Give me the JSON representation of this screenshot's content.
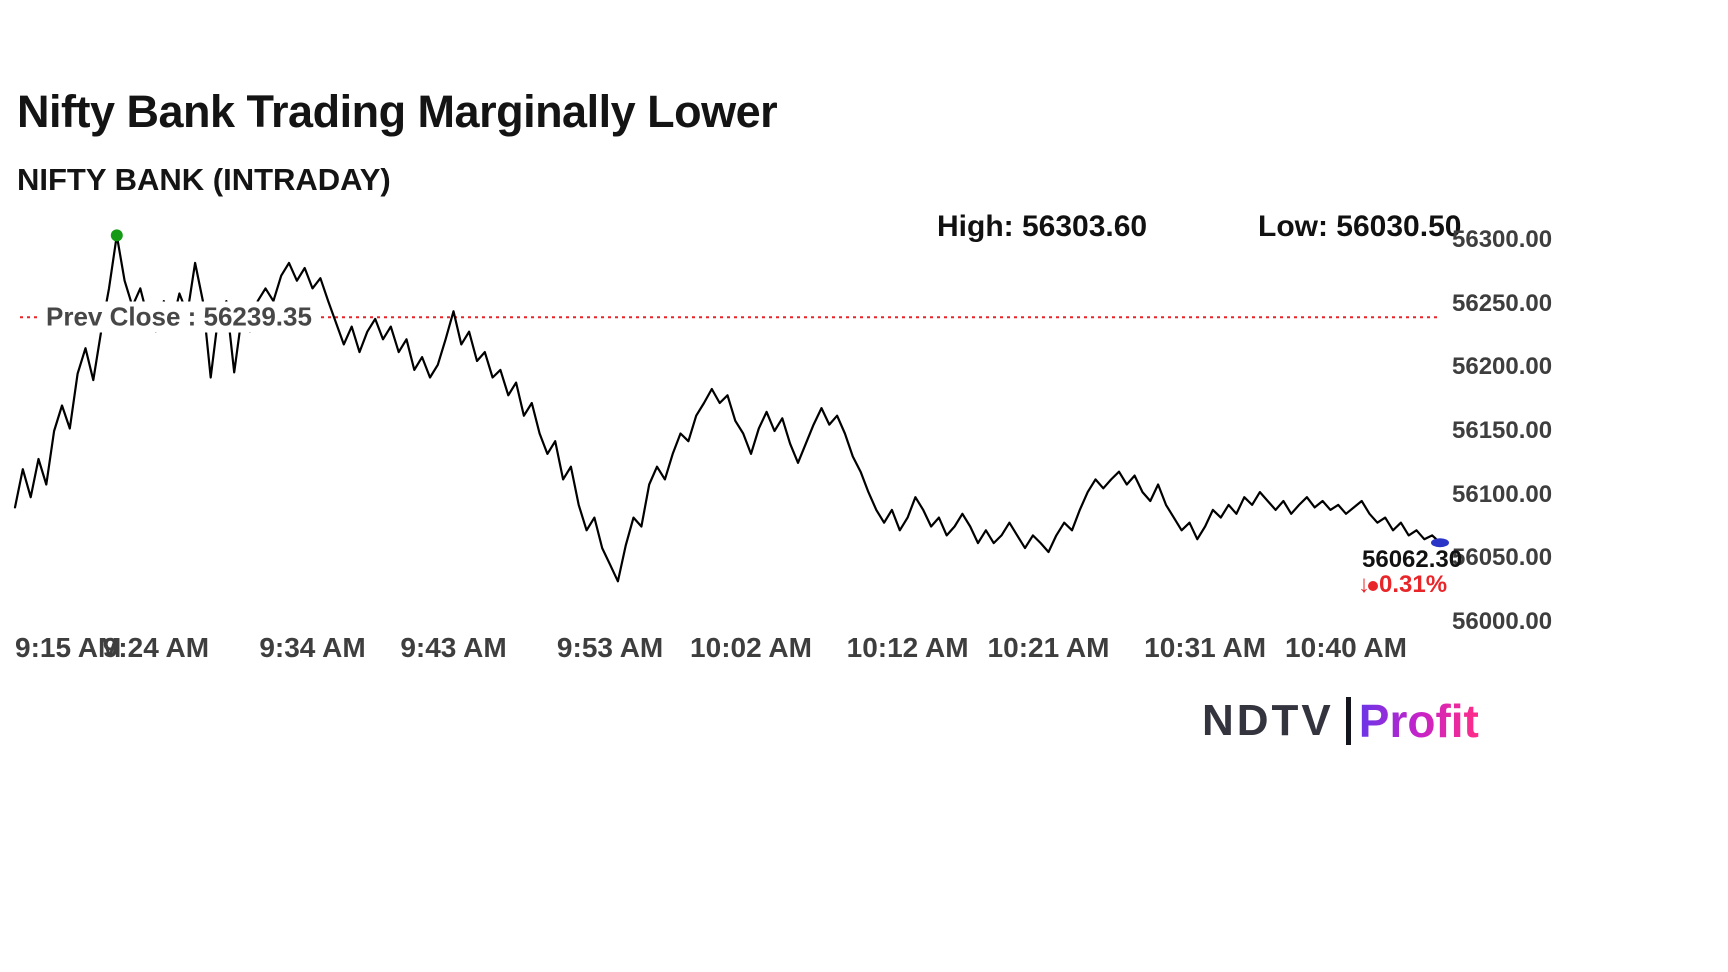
{
  "header": {
    "title": "Nifty Bank Trading Marginally Lower",
    "subtitle": "NIFTY BANK (INTRADAY)",
    "high_label": "High: 56303.60",
    "low_label": "Low: 56030.50"
  },
  "chart_data": {
    "type": "line",
    "title": "NIFTY BANK (INTRADAY)",
    "series_name": "Nifty Bank",
    "high": 56303.6,
    "low": 56030.5,
    "prev_close": 56239.35,
    "prev_close_label": "Prev Close : 56239.35",
    "last_price": 56062.3,
    "last_price_label": "56062.30",
    "change_arrow": "↓",
    "change_pct_label": "0.31%",
    "direction": "down",
    "ylim": [
      56000,
      56310
    ],
    "grid": false,
    "legend": "none",
    "y_ticks": [
      {
        "value": 56300,
        "label": "56300.00"
      },
      {
        "value": 56250,
        "label": "56250.00"
      },
      {
        "value": 56200,
        "label": "56200.00"
      },
      {
        "value": 56150,
        "label": "56150.00"
      },
      {
        "value": 56100,
        "label": "56100.00"
      },
      {
        "value": 56050,
        "label": "56050.00"
      },
      {
        "value": 56000,
        "label": "56000.00"
      }
    ],
    "x_ticks": [
      {
        "minute": 0,
        "label": "9:15 AM"
      },
      {
        "minute": 9,
        "label": "9:24 AM"
      },
      {
        "minute": 19,
        "label": "9:34 AM"
      },
      {
        "minute": 28,
        "label": "9:43 AM"
      },
      {
        "minute": 38,
        "label": "9:53 AM"
      },
      {
        "minute": 47,
        "label": "10:02 AM"
      },
      {
        "minute": 57,
        "label": "10:12 AM"
      },
      {
        "minute": 66,
        "label": "10:21 AM"
      },
      {
        "minute": 76,
        "label": "10:31 AM"
      },
      {
        "minute": 85,
        "label": "10:40 AM"
      }
    ],
    "time_start_minute": 0,
    "time_step_minute": 0.5,
    "prices": [
      56090,
      56120,
      56098,
      56128,
      56108,
      56150,
      56170,
      56152,
      56195,
      56215,
      56190,
      56228,
      56262,
      56303.6,
      56268,
      56248,
      56262,
      56238,
      56228,
      56252,
      56232,
      56258,
      56242,
      56282,
      56252,
      56192,
      56242,
      56252,
      56196,
      56242,
      56228,
      56252,
      56262,
      56252,
      56272,
      56282,
      56268,
      56278,
      56262,
      56270,
      56252,
      56235,
      56218,
      56232,
      56212,
      56228,
      56238,
      56222,
      56232,
      56212,
      56222,
      56198,
      56208,
      56192,
      56202,
      56222,
      56244,
      56218,
      56228,
      56205,
      56212,
      56192,
      56198,
      56178,
      56188,
      56162,
      56172,
      56148,
      56132,
      56142,
      56112,
      56122,
      56092,
      56072,
      56082,
      56058,
      56045,
      56032,
      56060,
      56082,
      56075,
      56108,
      56122,
      56112,
      56132,
      56148,
      56142,
      56162,
      56172,
      56183,
      56172,
      56178,
      56158,
      56148,
      56132,
      56152,
      56165,
      56150,
      56160,
      56140,
      56125,
      56140,
      56155,
      56168,
      56155,
      56162,
      56148,
      56130,
      56118,
      56102,
      56088,
      56078,
      56088,
      56072,
      56082,
      56098,
      56088,
      56075,
      56082,
      56068,
      56075,
      56085,
      56075,
      56062,
      56072,
      56062,
      56068,
      56078,
      56068,
      56058,
      56068,
      56062,
      56055,
      56068,
      56078,
      56072,
      56088,
      56102,
      56112,
      56105,
      56112,
      56118,
      56108,
      56115,
      56102,
      56095,
      56108,
      56092,
      56082,
      56072,
      56078,
      56065,
      56075,
      56088,
      56082,
      56092,
      56085,
      56098,
      56092,
      56102,
      56095,
      56088,
      56095,
      56085,
      56092,
      56098,
      56090,
      56095,
      56088,
      56092,
      56085,
      56090,
      56095,
      56085,
      56078,
      56082,
      56072,
      56078,
      56068,
      56072,
      56065,
      56068,
      56062.3
    ],
    "colors": {
      "line": "#000000",
      "prev_close": "#e8262a",
      "peak_marker": "#149a14",
      "end_marker": "#2a35c8",
      "change": "#e8262a"
    }
  },
  "footer": {
    "brand_ndtv": "NDTV",
    "brand_separator": "|",
    "brand_profit": "Profit"
  }
}
